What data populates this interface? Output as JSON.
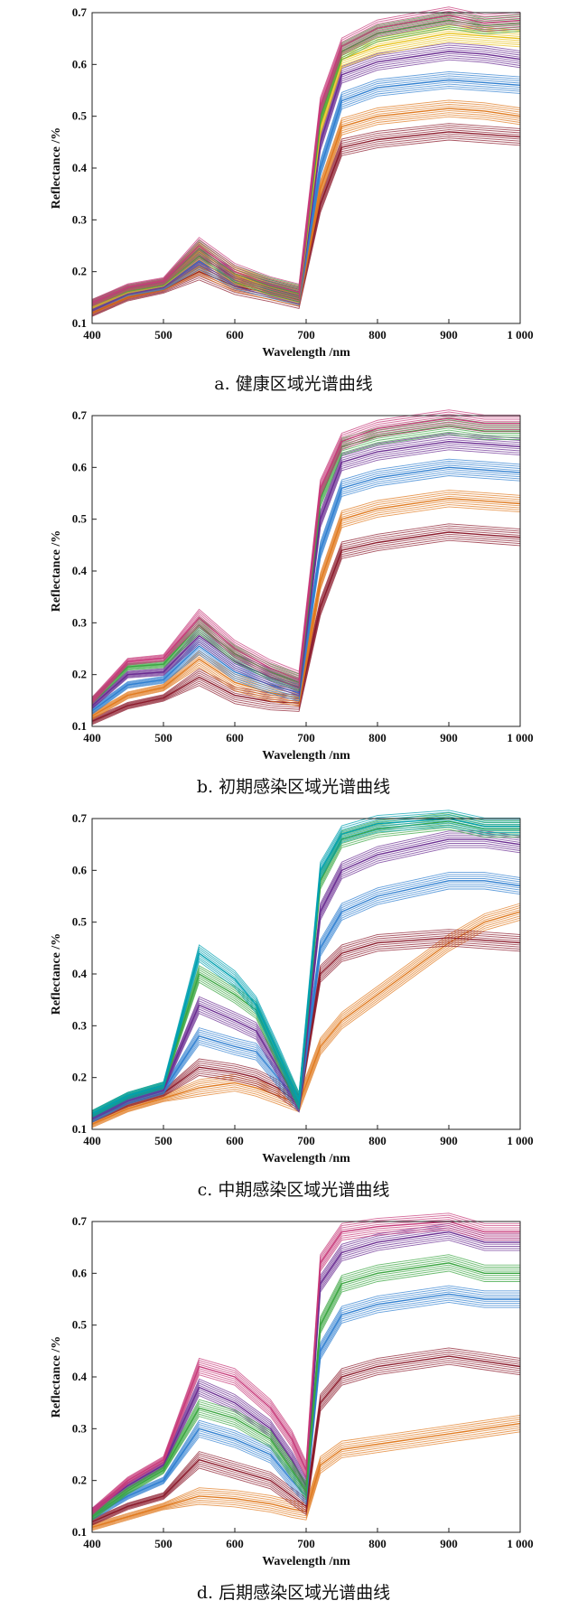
{
  "chart_data": [
    {
      "type": "line",
      "caption": "a. 健康区域光谱曲线",
      "xlabel": "Wavelength /nm",
      "ylabel": "Reflectance /%",
      "xlim": [
        400,
        1000
      ],
      "ylim": [
        0.1,
        0.7
      ],
      "xticks": [
        "400",
        "500",
        "600",
        "700",
        "800",
        "900",
        "1 000"
      ],
      "yticks": [
        "0.1",
        "0.2",
        "0.3",
        "0.4",
        "0.5",
        "0.6",
        "0.7"
      ],
      "x": [
        400,
        450,
        500,
        550,
        600,
        650,
        690,
        720,
        750,
        800,
        900,
        950,
        1000
      ],
      "series": [
        {
          "color": "#8b1a2b",
          "values": [
            0.12,
            0.15,
            0.165,
            0.2,
            0.172,
            0.158,
            0.145,
            0.33,
            0.44,
            0.455,
            0.47,
            0.465,
            0.46
          ]
        },
        {
          "color": "#e07a1f",
          "values": [
            0.125,
            0.155,
            0.17,
            0.21,
            0.178,
            0.162,
            0.15,
            0.36,
            0.48,
            0.5,
            0.515,
            0.51,
            0.5
          ]
        },
        {
          "color": "#2f7fd0",
          "values": [
            0.13,
            0.16,
            0.172,
            0.22,
            0.183,
            0.165,
            0.152,
            0.4,
            0.53,
            0.555,
            0.57,
            0.565,
            0.56
          ]
        },
        {
          "color": "#6a2c91",
          "values": [
            0.13,
            0.162,
            0.175,
            0.23,
            0.188,
            0.168,
            0.154,
            0.45,
            0.58,
            0.605,
            0.625,
            0.62,
            0.61
          ]
        },
        {
          "color": "#e8c21a",
          "values": [
            0.135,
            0.165,
            0.178,
            0.24,
            0.193,
            0.17,
            0.156,
            0.48,
            0.61,
            0.635,
            0.66,
            0.655,
            0.65
          ]
        },
        {
          "color": "#3aa640",
          "values": [
            0.14,
            0.168,
            0.18,
            0.245,
            0.196,
            0.172,
            0.158,
            0.5,
            0.625,
            0.66,
            0.685,
            0.675,
            0.68
          ]
        },
        {
          "color": "#c73a7a",
          "values": [
            0.14,
            0.17,
            0.182,
            0.25,
            0.2,
            0.174,
            0.16,
            0.52,
            0.635,
            0.67,
            0.695,
            0.68,
            0.685
          ]
        }
      ]
    },
    {
      "type": "line",
      "caption": "b. 初期感染区域光谱曲线",
      "xlabel": "Wavelength /nm",
      "ylabel": "Reflectance /%",
      "xlim": [
        400,
        1000
      ],
      "ylim": [
        0.1,
        0.7
      ],
      "xticks": [
        "400",
        "500",
        "600",
        "700",
        "800",
        "900",
        "1 000"
      ],
      "yticks": [
        "0.1",
        "0.2",
        "0.3",
        "0.4",
        "0.5",
        "0.6",
        "0.7"
      ],
      "x": [
        400,
        450,
        500,
        550,
        600,
        650,
        690,
        720,
        750,
        800,
        900,
        950,
        1000
      ],
      "series": [
        {
          "color": "#8b1a2b",
          "values": [
            0.11,
            0.14,
            0.155,
            0.195,
            0.16,
            0.148,
            0.145,
            0.33,
            0.44,
            0.455,
            0.475,
            0.47,
            0.465
          ]
        },
        {
          "color": "#e07a1f",
          "values": [
            0.12,
            0.16,
            0.175,
            0.23,
            0.185,
            0.165,
            0.155,
            0.38,
            0.5,
            0.52,
            0.54,
            0.535,
            0.53
          ]
        },
        {
          "color": "#2f7fd0",
          "values": [
            0.13,
            0.18,
            0.19,
            0.255,
            0.205,
            0.18,
            0.165,
            0.44,
            0.56,
            0.58,
            0.6,
            0.595,
            0.59
          ]
        },
        {
          "color": "#6a2c91",
          "values": [
            0.14,
            0.2,
            0.205,
            0.275,
            0.225,
            0.195,
            0.175,
            0.5,
            0.61,
            0.63,
            0.65,
            0.645,
            0.64
          ]
        },
        {
          "color": "#3aa640",
          "values": [
            0.15,
            0.215,
            0.22,
            0.295,
            0.24,
            0.205,
            0.185,
            0.54,
            0.64,
            0.66,
            0.68,
            0.67,
            0.67
          ]
        },
        {
          "color": "#c73a7a",
          "values": [
            0.15,
            0.225,
            0.232,
            0.31,
            0.25,
            0.212,
            0.19,
            0.56,
            0.65,
            0.675,
            0.695,
            0.685,
            0.685
          ]
        }
      ]
    },
    {
      "type": "line",
      "caption": "c. 中期感染区域光谱曲线",
      "xlabel": "Wavelength /nm",
      "ylabel": "Reflectance /%",
      "xlim": [
        400,
        1000
      ],
      "ylim": [
        0.1,
        0.7
      ],
      "xticks": [
        "400",
        "500",
        "600",
        "700",
        "800",
        "900",
        "1 000"
      ],
      "yticks": [
        "0.1",
        "0.2",
        "0.3",
        "0.4",
        "0.5",
        "0.6",
        "0.7"
      ],
      "x": [
        400,
        450,
        500,
        550,
        600,
        630,
        660,
        690,
        720,
        750,
        800,
        900,
        950,
        1000
      ],
      "series": [
        {
          "color": "#e07a1f",
          "values": [
            0.11,
            0.14,
            0.16,
            0.18,
            0.19,
            0.18,
            0.165,
            0.15,
            0.26,
            0.31,
            0.36,
            0.46,
            0.5,
            0.52
          ]
        },
        {
          "color": "#8b1a2b",
          "values": [
            0.12,
            0.15,
            0.17,
            0.22,
            0.21,
            0.2,
            0.18,
            0.15,
            0.4,
            0.44,
            0.46,
            0.47,
            0.465,
            0.46
          ]
        },
        {
          "color": "#2f7fd0",
          "values": [
            0.12,
            0.155,
            0.175,
            0.28,
            0.26,
            0.25,
            0.2,
            0.15,
            0.45,
            0.52,
            0.55,
            0.58,
            0.58,
            0.57
          ]
        },
        {
          "color": "#6a2c91",
          "values": [
            0.125,
            0.16,
            0.18,
            0.34,
            0.31,
            0.29,
            0.22,
            0.15,
            0.52,
            0.6,
            0.63,
            0.66,
            0.66,
            0.65
          ]
        },
        {
          "color": "#3aa640",
          "values": [
            0.13,
            0.165,
            0.185,
            0.4,
            0.36,
            0.33,
            0.24,
            0.155,
            0.58,
            0.66,
            0.68,
            0.695,
            0.68,
            0.68
          ]
        },
        {
          "color": "#00a0b0",
          "values": [
            0.13,
            0.165,
            0.185,
            0.44,
            0.39,
            0.34,
            0.25,
            0.155,
            0.6,
            0.67,
            0.69,
            0.7,
            0.685,
            0.685
          ]
        }
      ]
    },
    {
      "type": "line",
      "caption": "d. 后期感染区域光谱曲线",
      "xlabel": "Wavelength /nm",
      "ylabel": "Reflectance /%",
      "xlim": [
        400,
        1000
      ],
      "ylim": [
        0.1,
        0.7
      ],
      "xticks": [
        "400",
        "500",
        "600",
        "700",
        "800",
        "900",
        "1 000"
      ],
      "yticks": [
        "0.1",
        "0.2",
        "0.3",
        "0.4",
        "0.5",
        "0.6",
        "0.7"
      ],
      "x": [
        400,
        450,
        500,
        550,
        600,
        650,
        680,
        700,
        720,
        750,
        800,
        900,
        950,
        1000
      ],
      "series": [
        {
          "color": "#e07a1f",
          "values": [
            0.11,
            0.13,
            0.15,
            0.17,
            0.165,
            0.155,
            0.145,
            0.14,
            0.23,
            0.26,
            0.27,
            0.29,
            0.3,
            0.31
          ]
        },
        {
          "color": "#8b1a2b",
          "values": [
            0.12,
            0.15,
            0.17,
            0.24,
            0.22,
            0.2,
            0.17,
            0.15,
            0.35,
            0.4,
            0.42,
            0.44,
            0.43,
            0.42
          ]
        },
        {
          "color": "#2f7fd0",
          "values": [
            0.13,
            0.17,
            0.2,
            0.3,
            0.28,
            0.25,
            0.2,
            0.17,
            0.45,
            0.52,
            0.54,
            0.56,
            0.55,
            0.55
          ]
        },
        {
          "color": "#6a2c91",
          "values": [
            0.14,
            0.19,
            0.23,
            0.38,
            0.35,
            0.3,
            0.24,
            0.19,
            0.58,
            0.64,
            0.66,
            0.68,
            0.66,
            0.66
          ]
        },
        {
          "color": "#3aa640",
          "values": [
            0.13,
            0.18,
            0.22,
            0.34,
            0.32,
            0.28,
            0.22,
            0.18,
            0.5,
            0.58,
            0.6,
            0.62,
            0.6,
            0.6
          ]
        },
        {
          "color": "#c73a7a",
          "values": [
            0.14,
            0.2,
            0.24,
            0.42,
            0.4,
            0.34,
            0.28,
            0.22,
            0.62,
            0.68,
            0.69,
            0.7,
            0.68,
            0.68
          ]
        }
      ]
    }
  ]
}
